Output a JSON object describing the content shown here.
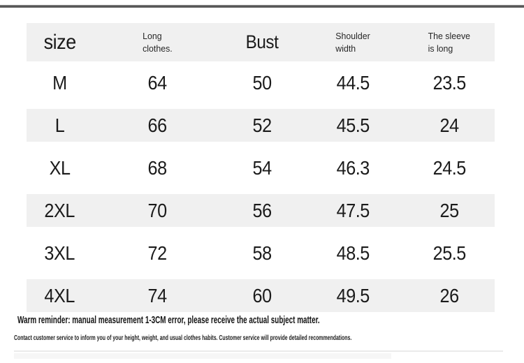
{
  "table": {
    "columns": [
      {
        "label": "size"
      },
      {
        "line1": "Long",
        "line2": "clothes."
      },
      {
        "label": "Bust"
      },
      {
        "line1": "Shoulder",
        "line2": "width"
      },
      {
        "line1": "The sleeve",
        "line2": "is long"
      }
    ],
    "rows": [
      {
        "label": "M",
        "values": [
          "64",
          "50",
          "44.5",
          "23.5"
        ]
      },
      {
        "label": "L",
        "values": [
          "66",
          "52",
          "45.5",
          "24"
        ]
      },
      {
        "label": "XL",
        "values": [
          "68",
          "54",
          "46.3",
          "24.5"
        ]
      },
      {
        "label": "2XL",
        "values": [
          "70",
          "56",
          "47.5",
          "25"
        ]
      },
      {
        "label": "3XL",
        "values": [
          "72",
          "58",
          "48.5",
          "25.5"
        ]
      },
      {
        "label": "4XL",
        "values": [
          "74",
          "60",
          "49.5",
          "26"
        ]
      }
    ]
  },
  "footer": {
    "warm_reminder": "Warm reminder: manual measurement 1-3CM error, please receive the actual subject matter.",
    "contact_note": "Contact customer service to inform you of your height, weight, and usual clothes habits. Customer service will provide detailed recommendations."
  },
  "colors": {
    "band_bg": "#f0f0f0",
    "top_line": "#585858",
    "text_color": "#1b1b1b"
  }
}
